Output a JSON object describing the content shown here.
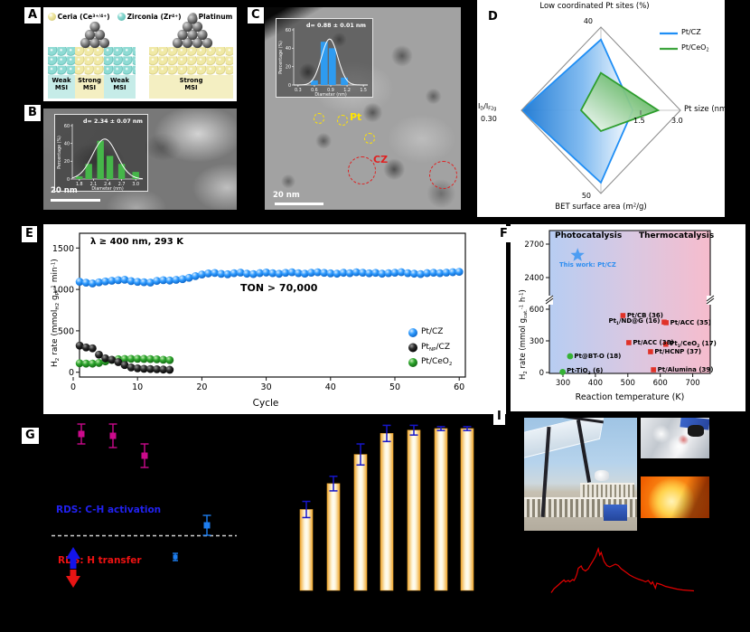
{
  "panel_labels": {
    "A": "A",
    "B": "B",
    "C": "C",
    "D": "D",
    "E": "E",
    "F": "F",
    "G": "G",
    "I": "I"
  },
  "A": {
    "legend": [
      {
        "label": "Ceria (Ce^3+/4+^)",
        "light": "#f0e9a6",
        "dark": "#cfc36e"
      },
      {
        "label": "Zirconia (Zr^4+^)",
        "light": "#8fdbd4",
        "dark": "#4fb3a9"
      },
      {
        "label": "Platinum",
        "light": "#9c9c9c",
        "dark": "#3e3e3e"
      }
    ],
    "msi": [
      {
        "text": "Weak MSI",
        "bg": "#c6ece8",
        "sphere": "zirconia"
      },
      {
        "text": "Strong MSI",
        "bg": "#f4efc2",
        "sphere": "ceria"
      },
      {
        "text": "Weak MSI",
        "bg": "#c6ece8",
        "sphere": "zirconia"
      },
      {
        "text": "Strong MSI",
        "bg": "#f4efc2",
        "sphere": "ceria"
      }
    ]
  },
  "B": {
    "scalebar": "20 nm",
    "chart_data": {
      "type": "bar",
      "title": "d= 2.34 ± 0.07 nm",
      "xlabel": "Diameter (nm)",
      "ylabel": "Percentage (%)",
      "xticks": [
        1.8,
        2.1,
        2.4,
        2.7,
        3.0
      ],
      "yticks": [
        0,
        20,
        40,
        60
      ],
      "centers": [
        1.8,
        2.0,
        2.25,
        2.45,
        2.7,
        3.0
      ],
      "values": [
        3,
        17,
        43,
        26,
        17,
        8
      ],
      "gauss": {
        "mean": 2.34,
        "sd": 0.26,
        "amp": 45
      },
      "bar_color": "#45b649",
      "ylim": [
        0,
        60
      ]
    }
  },
  "C": {
    "scalebar": "20 nm",
    "pt_label": "Pt",
    "cz_label": "CZ",
    "chart_data": {
      "type": "bar",
      "title": "d= 0.88 ± 0.01 nm",
      "xlabel": "Diameter (nm)",
      "ylabel": "Percentage (%)",
      "xticks": [
        0.3,
        0.6,
        0.9,
        1.2,
        1.5
      ],
      "yticks": [
        0,
        20,
        40,
        60
      ],
      "centers": [
        0.6,
        0.78,
        0.93,
        1.15
      ],
      "values": [
        5,
        47,
        40,
        8
      ],
      "gauss": {
        "mean": 0.88,
        "sd": 0.15,
        "amp": 50
      },
      "bar_color": "#2e9bf0",
      "ylim": [
        0,
        60
      ]
    }
  },
  "D": {
    "chart_data": {
      "type": "radar",
      "axes": [
        {
          "name": "Low coordinated Pt sites (%)",
          "tick": "40"
        },
        {
          "name": "Pt size (nm)",
          "mid_tick": "1.5",
          "tick": "3.0"
        },
        {
          "name": "BET surface area (m^2^/g)",
          "tick": "50"
        },
        {
          "name": "I_D_/I_F2g_",
          "tick": "0.30"
        }
      ],
      "series": [
        {
          "name": "Pt/CZ",
          "color": "#1f8ef5",
          "values": [
            0.85,
            0.4,
            0.87,
            0.99
          ]
        },
        {
          "name": "Pt/CeO_2_",
          "color": "#3da43d",
          "values": [
            0.45,
            0.72,
            0.25,
            0.25
          ]
        }
      ]
    }
  },
  "E": {
    "annotation": "λ ≥ 400 nm, 293 K",
    "ton": "TON > 70,000",
    "xlabel": "Cycle",
    "ylabel": "H_2_ rate (mmol_H2_ g_Pt_^-1^ min^-1^)",
    "chart_data": {
      "type": "scatter",
      "xlabel": "Cycle",
      "yticks": [
        0,
        500,
        1000,
        1500
      ],
      "xticks": [
        0,
        10,
        20,
        30,
        40,
        50,
        60
      ],
      "ylim": [
        0,
        1600
      ],
      "series": [
        {
          "name": "Pt/CZ",
          "color": "#2f9bff",
          "values": [
            1093,
            1082,
            1072,
            1086,
            1097,
            1105,
            1112,
            1117,
            1101,
            1091,
            1087,
            1083,
            1103,
            1112,
            1107,
            1116,
            1124,
            1140,
            1161,
            1180,
            1193,
            1199,
            1188,
            1183,
            1196,
            1203,
            1190,
            1185,
            1197,
            1204,
            1196,
            1189,
            1200,
            1207,
            1196,
            1191,
            1202,
            1207,
            1200,
            1194,
            1190,
            1201,
            1196,
            1207,
            1202,
            1195,
            1200,
            1190,
            1196,
            1202,
            1208,
            1196,
            1190,
            1185,
            1197,
            1202,
            1196,
            1203,
            1208,
            1213
          ]
        },
        {
          "name": "Pt_NP_/CZ",
          "color": "#141414",
          "values": [
            322,
            300,
            289,
            212,
            168,
            151,
            122,
            87,
            58,
            47,
            42,
            39,
            36,
            33,
            30
          ]
        },
        {
          "name": "Pt/CeO_2_",
          "color": "#2ca52c",
          "values": [
            108,
            104,
            104,
            112,
            131,
            149,
            157,
            160,
            162,
            162,
            161,
            159,
            156,
            151,
            147
          ]
        }
      ]
    }
  },
  "F": {
    "region_left": "Photocatalysis",
    "region_right": "Thermocatalysis",
    "xlabel": "Reaction temperature (K)",
    "ylabel": "H_2_ rate (mmol g_cat._^-1^ h^-1^)",
    "star": {
      "label": "This work: Pt/CZ",
      "temp": 345,
      "rate": 2600,
      "color": "#4d9df2",
      "label_color": "#2f8ef0"
    },
    "chart_data": {
      "type": "scatter",
      "yticks_lower": [
        0,
        300,
        600
      ],
      "yticks_upper": [
        2400,
        2700
      ],
      "xticks": [
        300,
        400,
        500,
        600,
        700
      ],
      "points": [
        {
          "label": "Pt/CB (36)",
          "temp": 485,
          "rate": 540,
          "side": "right",
          "marker": "square",
          "color": "#e03228"
        },
        {
          "label": "Pt_1_/ND@G (16)",
          "temp": 612,
          "rate": 478,
          "side": "left",
          "marker": "square",
          "color": "#e03228"
        },
        {
          "label": "Pt/ACC (35)",
          "temp": 618,
          "rate": 472,
          "side": "right",
          "marker": "square",
          "color": "#e03228"
        },
        {
          "label": "Pt/ACC (38)",
          "temp": 503,
          "rate": 283,
          "side": "right",
          "marker": "square",
          "color": "#e03228"
        },
        {
          "label": "Pt_1_/CeO_2_ (17)",
          "temp": 617,
          "rate": 268,
          "side": "right",
          "marker": "square",
          "color": "#e03228"
        },
        {
          "label": "Pt/HCNP (37)",
          "temp": 570,
          "rate": 197,
          "side": "right",
          "marker": "square",
          "color": "#e03228"
        },
        {
          "label": "Pt/Alumina (39)",
          "temp": 579,
          "rate": 26,
          "side": "right",
          "marker": "square",
          "color": "#e03228"
        },
        {
          "label": "Pt@BT-O (18)",
          "temp": 322,
          "rate": 154,
          "side": "right",
          "marker": "circle",
          "color": "#35b235"
        },
        {
          "label": "Pt-TiO_2_ (6)",
          "temp": 299,
          "rate": 5,
          "side": "right",
          "marker": "circle",
          "color": "#35b235"
        }
      ]
    }
  },
  "G": {
    "rds_top": "RDS: C-H activation",
    "rds_top_color": "#2121f0",
    "rds_bottom": "RDS: H transfer",
    "rds_bottom_color": "#ee1212",
    "chart_data": {
      "type": "scatter",
      "magenta_color": "#cc0a8c",
      "blue_color": "#1e7ef0",
      "magenta_points": [
        {
          "x": 70,
          "y": 15,
          "whisker": 11
        },
        {
          "x": 105,
          "y": 17,
          "whisker": 13
        },
        {
          "x": 140,
          "y": 39,
          "whisker": 13
        }
      ],
      "blue_points": [
        {
          "x": 209,
          "y": 116,
          "whisker": 11
        },
        {
          "x": 174,
          "y": 151,
          "whisker": 4
        }
      ],
      "dash_y": 127.5
    }
  },
  "H": {
    "chart_data": {
      "type": "bar",
      "values": [
        0.5,
        0.66,
        0.84,
        0.97,
        0.99,
        1.0,
        1.0
      ],
      "errors": [
        0.05,
        0.045,
        0.065,
        0.05,
        0.03,
        0.012,
        0.012
      ],
      "bar_edge": "#f0a832",
      "bar_center": "#fffdf2",
      "error_color": "#1616c8"
    }
  },
  "I": {
    "photos": [
      "solar concentrator on rooftop",
      "reactor wrapped in foil",
      "glowing photothermal reaction"
    ],
    "spectrum": {
      "color": "#e40000",
      "points": [
        [
          0,
          0.03
        ],
        [
          0.02,
          0.12
        ],
        [
          0.05,
          0.2
        ],
        [
          0.07,
          0.26
        ],
        [
          0.09,
          0.31
        ],
        [
          0.1,
          0.27
        ],
        [
          0.12,
          0.3
        ],
        [
          0.13,
          0.27
        ],
        [
          0.15,
          0.32
        ],
        [
          0.16,
          0.3
        ],
        [
          0.17,
          0.36
        ],
        [
          0.18,
          0.44
        ],
        [
          0.19,
          0.57
        ],
        [
          0.21,
          0.62
        ],
        [
          0.22,
          0.55
        ],
        [
          0.24,
          0.51
        ],
        [
          0.26,
          0.56
        ],
        [
          0.27,
          0.62
        ],
        [
          0.29,
          0.72
        ],
        [
          0.31,
          0.83
        ],
        [
          0.33,
          1.0
        ],
        [
          0.34,
          0.86
        ],
        [
          0.35,
          0.92
        ],
        [
          0.37,
          0.72
        ],
        [
          0.39,
          0.63
        ],
        [
          0.41,
          0.6
        ],
        [
          0.43,
          0.63
        ],
        [
          0.45,
          0.66
        ],
        [
          0.47,
          0.63
        ],
        [
          0.49,
          0.56
        ],
        [
          0.52,
          0.49
        ],
        [
          0.55,
          0.42
        ],
        [
          0.58,
          0.37
        ],
        [
          0.61,
          0.33
        ],
        [
          0.64,
          0.3
        ],
        [
          0.66,
          0.27
        ],
        [
          0.68,
          0.3
        ],
        [
          0.7,
          0.22
        ],
        [
          0.71,
          0.27
        ],
        [
          0.73,
          0.13
        ],
        [
          0.74,
          0.24
        ],
        [
          0.77,
          0.21
        ],
        [
          0.8,
          0.17
        ],
        [
          0.84,
          0.14
        ],
        [
          0.88,
          0.11
        ],
        [
          0.92,
          0.09
        ],
        [
          0.96,
          0.08
        ],
        [
          1,
          0.07
        ]
      ]
    }
  }
}
